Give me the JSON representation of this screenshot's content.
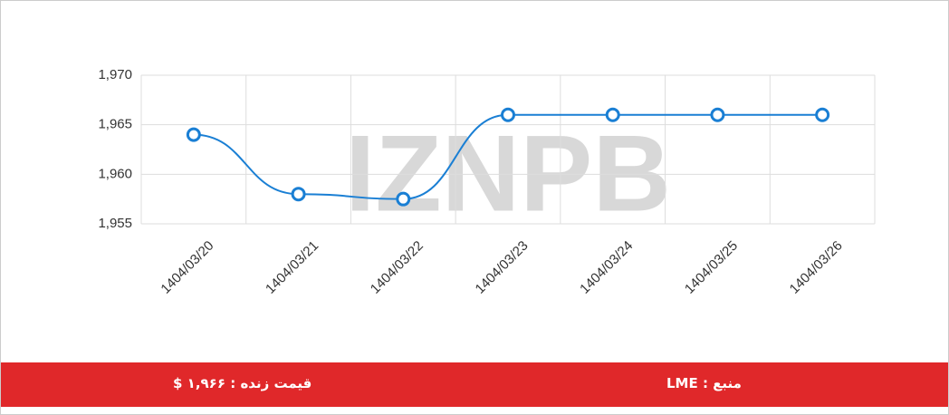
{
  "chart_data": {
    "type": "line",
    "categories": [
      "1404/03/20",
      "1404/03/21",
      "1404/03/22",
      "1404/03/23",
      "1404/03/24",
      "1404/03/25",
      "1404/03/26"
    ],
    "values": [
      1964,
      1958,
      1957.5,
      1966,
      1966,
      1966,
      1966
    ],
    "color": "#1a7fd4",
    "ylim": [
      1955,
      1970
    ],
    "yticks": [
      {
        "value": 1955,
        "label": "1,955"
      },
      {
        "value": 1960,
        "label": "1,960"
      },
      {
        "value": 1965,
        "label": "1,965"
      },
      {
        "value": 1970,
        "label": "1,970"
      }
    ],
    "grid": true,
    "watermark": "IZNPB"
  },
  "footer": {
    "live_price": "قیمت زنده : ۱,۹۶۶ $",
    "source": "منبع : LME"
  }
}
